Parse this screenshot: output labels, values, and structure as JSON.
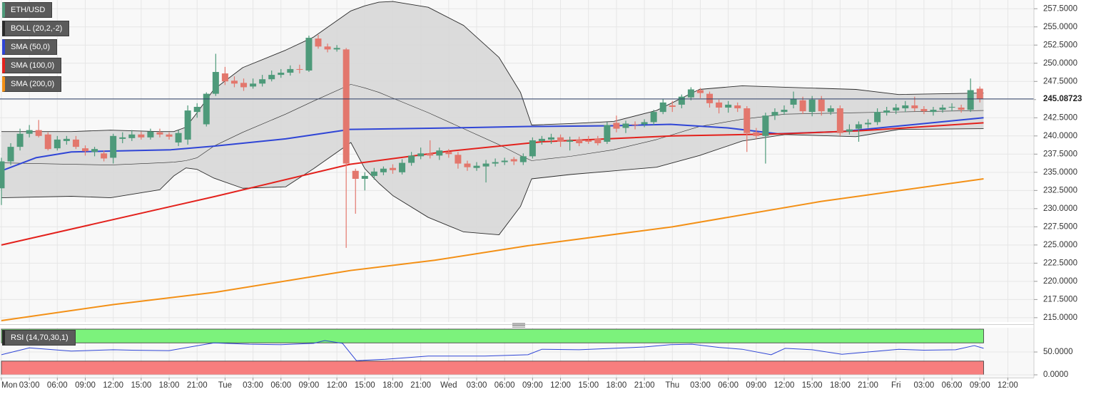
{
  "chart_data": [
    {
      "type": "candlestick",
      "name": "ETH/USD",
      "up_color": "#4e9a7a",
      "down_color": "#e3776d",
      "x": [
        0,
        1,
        2,
        3,
        4,
        5,
        6,
        7,
        8,
        9,
        10,
        11,
        12,
        13,
        14,
        15,
        16,
        17,
        18,
        19,
        20,
        21,
        22,
        23,
        24,
        25,
        26,
        27,
        28,
        29,
        30,
        31,
        32,
        33,
        34,
        35,
        36,
        37,
        38,
        39,
        40,
        41,
        42,
        43,
        44,
        45,
        46,
        47,
        48,
        49,
        50,
        51,
        52,
        53,
        54,
        55,
        56,
        57,
        58,
        59,
        60,
        61,
        62,
        63,
        64,
        65,
        66,
        67,
        68,
        69,
        70,
        71,
        72,
        73,
        74,
        75,
        76,
        77,
        78,
        79,
        80,
        81,
        82,
        83,
        84,
        85,
        86,
        87,
        88,
        89,
        90,
        91,
        92,
        93,
        94,
        95,
        96,
        97,
        98,
        99,
        100,
        101,
        102,
        103,
        104,
        105
      ],
      "open": [
        232.8,
        236.5,
        238.5,
        240.3,
        240.8,
        240.2,
        238.3,
        239.3,
        239.5,
        238.3,
        237.8,
        237.6,
        237,
        239.6,
        239.7,
        240.2,
        239.8,
        240.5,
        240.2,
        239.1,
        239.5,
        243.3,
        241.6,
        245.8,
        248.6,
        247.6,
        247.3,
        246.8,
        247.2,
        247.8,
        248.4,
        248.7,
        249.2,
        249.0,
        253.4,
        252.3,
        251.9,
        251.9,
        235.2,
        234.1,
        234.5,
        235.0,
        235.6,
        235.0,
        236.3,
        237.2,
        237.6,
        237.3,
        237.8,
        237.4,
        236.2,
        235.6,
        235.8,
        236.2,
        236.4,
        236.8,
        236.4,
        237.2,
        239.3,
        239.5,
        239.8,
        239.2,
        239.5,
        239.4,
        239.6,
        239.2,
        241.8,
        241.1,
        241.6,
        241.6,
        241.9,
        243.3,
        244.2,
        244.3,
        245.3,
        246.3,
        245.8,
        244.6,
        243.9,
        244.2,
        243.8,
        240.5,
        240,
        242.8,
        243.3,
        244.3,
        244.9,
        243.3,
        245,
        243.3,
        243.8,
        240.6,
        241,
        241.6,
        241.9,
        243.2,
        243.5,
        243.8,
        244.2,
        243.7,
        243.3,
        243.6,
        243.9,
        243.9,
        243.6,
        246.5
      ],
      "high": [
        237,
        239,
        241,
        241.5,
        242.2,
        240.5,
        240,
        240,
        240,
        238.7,
        238.5,
        238,
        240.3,
        240.5,
        240.8,
        240.6,
        241,
        241,
        240.5,
        240.8,
        244.2,
        244.5,
        246,
        251.3,
        249.5,
        248.2,
        247.9,
        247.9,
        248.4,
        249,
        249.2,
        249.7,
        249.8,
        253.8,
        253.9,
        252.7,
        252.5,
        252.1,
        235.5,
        235,
        235.6,
        235.8,
        236.1,
        236.8,
        237.8,
        238.4,
        239.4,
        238.4,
        238.2,
        237.8,
        236.6,
        236.4,
        236.7,
        236.9,
        237,
        237.1,
        237.6,
        239.8,
        240,
        240.3,
        240.2,
        239.9,
        239.9,
        240,
        240,
        241.9,
        242.8,
        242.1,
        242,
        242.3,
        243.6,
        245.1,
        244.8,
        245.7,
        246.7,
        246.6,
        246.1,
        245,
        244.8,
        244.6,
        244.1,
        241.1,
        243.2,
        243.8,
        244.2,
        246.1,
        245.4,
        245.5,
        245.5,
        244.2,
        244.2,
        241.6,
        242,
        242.3,
        243.8,
        244,
        244.4,
        244.8,
        245.4,
        244.1,
        244,
        244.3,
        244.5,
        244.3,
        247.9,
        246.8
      ],
      "low": [
        230.5,
        236,
        238,
        239.8,
        239.8,
        238,
        238,
        238.8,
        238.2,
        237.3,
        237.2,
        236.5,
        236.2,
        239,
        239.3,
        239.5,
        239.5,
        239.8,
        239.5,
        238.6,
        238.8,
        242.5,
        241.3,
        245.5,
        247,
        246.7,
        246.2,
        246.5,
        246.8,
        247.5,
        248,
        248.3,
        248.6,
        248.8,
        252,
        251.5,
        251.6,
        224.6,
        229.3,
        232.5,
        234,
        234.6,
        234.8,
        234.7,
        235.9,
        236.8,
        236.9,
        236.7,
        237,
        235.5,
        235.2,
        235.2,
        233.6,
        235.8,
        236,
        236,
        236,
        236.9,
        238.8,
        238.9,
        238.5,
        238,
        238.6,
        238.9,
        238.7,
        238.9,
        240.5,
        240.4,
        240.9,
        241.2,
        241.5,
        243,
        243.3,
        243.8,
        244.9,
        245.2,
        243.9,
        243.1,
        243.2,
        243.3,
        237.8,
        239.6,
        236.2,
        242.2,
        242.9,
        243.8,
        243,
        242.7,
        242.8,
        242.9,
        240,
        240.2,
        239.2,
        241.1,
        241.5,
        242.8,
        243,
        243.3,
        243.4,
        243,
        242.8,
        243.2,
        243.4,
        243.2,
        243.3,
        244.6
      ],
      "close": [
        236.5,
        238.5,
        240.3,
        240.8,
        240.0,
        238.2,
        239.5,
        239.6,
        238.5,
        237.9,
        238.2,
        236.9,
        240,
        239.8,
        240.2,
        239.8,
        240.6,
        240.2,
        239.9,
        240.4,
        243.5,
        244,
        245.8,
        248.8,
        247.5,
        247.2,
        246.7,
        247.2,
        247.8,
        248.4,
        248.7,
        249.2,
        249.1,
        253.5,
        252.3,
        251.9,
        252.1,
        236.2,
        234.1,
        234.5,
        235.1,
        235.5,
        235.3,
        236.3,
        237.3,
        237.6,
        237.3,
        238,
        237.5,
        236.2,
        235.7,
        235.9,
        236.2,
        236.4,
        236.6,
        236.5,
        237.2,
        239.4,
        239.6,
        239.8,
        239.2,
        239.4,
        239.0,
        239.2,
        239.0,
        241.5,
        241,
        241.7,
        241.5,
        241.9,
        243.3,
        244.6,
        244,
        245.4,
        246.4,
        245.9,
        244.5,
        243.9,
        244.3,
        243.8,
        240.4,
        240,
        242.8,
        243.3,
        243.6,
        245.1,
        243.4,
        245,
        243.4,
        243.8,
        240.4,
        240.9,
        241.6,
        241.8,
        243.3,
        243.5,
        243.9,
        244.2,
        243.8,
        243.4,
        243.6,
        243.9,
        244,
        243.6,
        246.3,
        245.1
      ],
      "overlays": [
        {
          "type": "band",
          "name": "BOLL (20,2,-2)",
          "color": "#2a2a2a",
          "fill": "#d6d6d6",
          "x": [
            0,
            7.5,
            11.7,
            17,
            18.5,
            19.8,
            21,
            22.8,
            25.9,
            30.5,
            33.5,
            37.5,
            39,
            40.5,
            42,
            45.8,
            49.6,
            53.4,
            55.7,
            56.9,
            61.1,
            65.7,
            70.3,
            74.9,
            79.5,
            84.1,
            91.7,
            96.3,
            105.4
          ],
          "upper": [
            240.6,
            240.6,
            240.8,
            240.6,
            240.6,
            241.2,
            243.2,
            246.4,
            249.4,
            251.8,
            253.6,
            257.2,
            257.9,
            258.4,
            258.5,
            257.7,
            255.2,
            250.8,
            246,
            241.5,
            241.7,
            242,
            243.5,
            246.4,
            246.9,
            246.7,
            246.4,
            245.7,
            245.9
          ],
          "middle": [
            236.3,
            236.1,
            236,
            236.3,
            236.4,
            236.6,
            237,
            238.6,
            240.5,
            243,
            244.8,
            247.1,
            246.6,
            246,
            245.2,
            243.2,
            241,
            238.8,
            237.3,
            236.6,
            237.2,
            238.1,
            239.5,
            241.3,
            242.3,
            243,
            243.2,
            243.3,
            243.5
          ],
          "lower": [
            231.5,
            231.7,
            231.5,
            232.6,
            234.5,
            235.6,
            235.4,
            234.2,
            232.8,
            233,
            235.5,
            239.1,
            235.5,
            233.5,
            231.8,
            228.8,
            226.8,
            226.4,
            230.3,
            234.1,
            234.7,
            235.2,
            235.7,
            237.3,
            239.3,
            240.2,
            239.9,
            240.9,
            241
          ]
        },
        {
          "type": "line",
          "name": "SMA (50,0)",
          "color": "#2f45d6",
          "x": [
            0,
            3.7,
            7.5,
            18.2,
            22.8,
            30.5,
            37.4,
            48,
            56.5,
            65.7,
            71.8,
            78,
            83.3,
            90.2,
            105.4
          ],
          "values": [
            235.2,
            237,
            237.8,
            238.1,
            238.6,
            239.6,
            240.9,
            241.1,
            241.3,
            241.4,
            241.6,
            241.1,
            240.3,
            240.6,
            242.5
          ]
        },
        {
          "type": "line",
          "name": "SMA (100,0)",
          "color": "#e3211c",
          "x": [
            0,
            23,
            37.4,
            48,
            58,
            72,
            84,
            92,
            105.4
          ],
          "values": [
            225,
            231.7,
            236.1,
            237.9,
            239.2,
            240,
            240.3,
            240.7,
            241.8
          ]
        },
        {
          "type": "line",
          "name": "SMA (200,0)",
          "color": "#f39016",
          "x": [
            0,
            12,
            23,
            37.5,
            46.5,
            56.5,
            72,
            88,
            105.4
          ],
          "values": [
            214.6,
            216.8,
            218.5,
            221.5,
            222.9,
            224.9,
            227.5,
            231,
            234.1
          ]
        }
      ],
      "last_price": 245.08723,
      "xlim": [
        -0.15,
        110.8
      ],
      "xticks": [
        {
          "value": 0,
          "label": "Mon"
        },
        {
          "value": 3,
          "label": "03:00"
        },
        {
          "value": 6,
          "label": "06:00"
        },
        {
          "value": 9,
          "label": "09:00"
        },
        {
          "value": 12,
          "label": "12:00"
        },
        {
          "value": 15,
          "label": "15:00"
        },
        {
          "value": 18,
          "label": "18:00"
        },
        {
          "value": 21,
          "label": "21:00"
        },
        {
          "value": 24,
          "label": "Tue"
        },
        {
          "value": 27,
          "label": "03:00"
        },
        {
          "value": 30,
          "label": "06:00"
        },
        {
          "value": 33,
          "label": "09:00"
        },
        {
          "value": 36,
          "label": "12:00"
        },
        {
          "value": 39,
          "label": "15:00"
        },
        {
          "value": 42,
          "label": "18:00"
        },
        {
          "value": 45,
          "label": "21:00"
        },
        {
          "value": 48,
          "label": "Wed"
        },
        {
          "value": 51,
          "label": "03:00"
        },
        {
          "value": 54,
          "label": "06:00"
        },
        {
          "value": 57,
          "label": "09:00"
        },
        {
          "value": 60,
          "label": "12:00"
        },
        {
          "value": 63,
          "label": "15:00"
        },
        {
          "value": 66,
          "label": "18:00"
        },
        {
          "value": 69,
          "label": "21:00"
        },
        {
          "value": 72,
          "label": "Thu"
        },
        {
          "value": 75,
          "label": "03:00"
        },
        {
          "value": 78,
          "label": "06:00"
        },
        {
          "value": 81,
          "label": "09:00"
        },
        {
          "value": 84,
          "label": "12:00"
        },
        {
          "value": 87,
          "label": "15:00"
        },
        {
          "value": 90,
          "label": "18:00"
        },
        {
          "value": 93,
          "label": "21:00"
        },
        {
          "value": 96,
          "label": "Fri"
        },
        {
          "value": 99,
          "label": "03:00"
        },
        {
          "value": 102,
          "label": "06:00"
        },
        {
          "value": 105,
          "label": "09:00"
        },
        {
          "value": 108,
          "label": "12:00"
        }
      ],
      "ylim": [
        214.4,
        258.7
      ],
      "yticks": [
        {
          "value": 215,
          "label": "215.0000"
        },
        {
          "value": 217.5,
          "label": "217.5000"
        },
        {
          "value": 220,
          "label": "220.0000"
        },
        {
          "value": 222.5,
          "label": "222.5000"
        },
        {
          "value": 225,
          "label": "225.0000"
        },
        {
          "value": 227.5,
          "label": "227.5000"
        },
        {
          "value": 230,
          "label": "230.0000"
        },
        {
          "value": 232.5,
          "label": "232.5000"
        },
        {
          "value": 235,
          "label": "235.0000"
        },
        {
          "value": 237.5,
          "label": "237.5000"
        },
        {
          "value": 240,
          "label": "240.0000"
        },
        {
          "value": 242.5,
          "label": "242.5000"
        },
        {
          "value": 245,
          "label": "245.0000"
        },
        {
          "value": 247.5,
          "label": "247.5000"
        },
        {
          "value": 250,
          "label": "250.0000"
        },
        {
          "value": 252.5,
          "label": "252.5000"
        },
        {
          "value": 255,
          "label": "255.0000"
        },
        {
          "value": 257.5,
          "label": "257.5000"
        }
      ],
      "grid": true
    },
    {
      "type": "line",
      "name": "RSI (14,70,30,1)",
      "color": "#2f45d6",
      "x": [
        0,
        3,
        7.5,
        12,
        14,
        18,
        22.8,
        26.6,
        30,
        33.5,
        34.7,
        36.6,
        38.1,
        41.2,
        45.8,
        51.9,
        56.5,
        58,
        62,
        65.7,
        69,
        71.8,
        74.1,
        77,
        79.5,
        82.6,
        84.1,
        87,
        90.2,
        93,
        96.3,
        99,
        102.4,
        104.4,
        105.4
      ],
      "values": [
        44,
        59,
        52,
        55,
        54,
        53,
        70,
        67,
        66,
        69,
        75,
        69,
        31,
        34,
        41,
        41,
        44,
        56,
        55,
        58,
        61,
        66,
        67,
        60,
        56,
        44,
        58,
        55,
        45,
        50,
        56,
        54,
        55,
        64,
        58
      ],
      "bands": [
        {
          "from": 70,
          "to": 100,
          "color": "#7cf27c"
        },
        {
          "from": 0,
          "to": 30,
          "color": "#f77e7e"
        }
      ],
      "ylim": [
        -3,
        100
      ],
      "yticks": [
        {
          "value": 0,
          "label": "0.0000"
        },
        {
          "value": 50,
          "label": "50.0000"
        }
      ]
    }
  ]
}
